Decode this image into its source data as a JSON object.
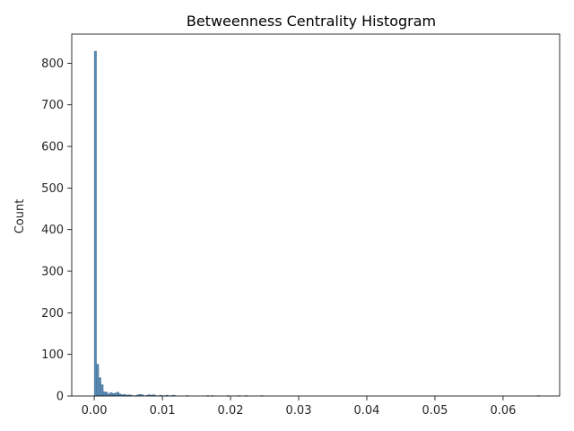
{
  "chart_data": {
    "type": "bar",
    "title": "Betweenness Centrality Histogram",
    "xlabel": "",
    "ylabel": "Count",
    "xlim": [
      -0.0033,
      0.0683
    ],
    "ylim": [
      0,
      870
    ],
    "x_ticks": [
      0.0,
      0.01,
      0.02,
      0.03,
      0.04,
      0.05,
      0.06
    ],
    "x_tick_labels": [
      "0.00",
      "0.01",
      "0.02",
      "0.03",
      "0.04",
      "0.05",
      "0.06"
    ],
    "y_ticks": [
      0,
      100,
      200,
      300,
      400,
      500,
      600,
      700,
      800
    ],
    "y_tick_labels": [
      "0",
      "100",
      "200",
      "300",
      "400",
      "500",
      "600",
      "700",
      "800"
    ],
    "grid": false,
    "bin_width": 0.00033,
    "bins": [
      {
        "x": 0.0,
        "count": 829
      },
      {
        "x": 0.00033,
        "count": 76
      },
      {
        "x": 0.00066,
        "count": 44
      },
      {
        "x": 0.00099,
        "count": 27
      },
      {
        "x": 0.00132,
        "count": 10
      },
      {
        "x": 0.00165,
        "count": 9
      },
      {
        "x": 0.00198,
        "count": 5
      },
      {
        "x": 0.00231,
        "count": 8
      },
      {
        "x": 0.00264,
        "count": 6
      },
      {
        "x": 0.00297,
        "count": 7
      },
      {
        "x": 0.0033,
        "count": 9
      },
      {
        "x": 0.00363,
        "count": 5
      },
      {
        "x": 0.00396,
        "count": 3
      },
      {
        "x": 0.00429,
        "count": 4
      },
      {
        "x": 0.00462,
        "count": 2
      },
      {
        "x": 0.00495,
        "count": 3
      },
      {
        "x": 0.00528,
        "count": 2
      },
      {
        "x": 0.00594,
        "count": 1
      },
      {
        "x": 0.00627,
        "count": 3
      },
      {
        "x": 0.0066,
        "count": 4
      },
      {
        "x": 0.00693,
        "count": 3
      },
      {
        "x": 0.00759,
        "count": 2
      },
      {
        "x": 0.00792,
        "count": 3
      },
      {
        "x": 0.00825,
        "count": 2
      },
      {
        "x": 0.00858,
        "count": 3
      },
      {
        "x": 0.00891,
        "count": 1
      },
      {
        "x": 0.00957,
        "count": 2
      },
      {
        "x": 0.01023,
        "count": 1
      },
      {
        "x": 0.01056,
        "count": 2
      },
      {
        "x": 0.01122,
        "count": 1
      },
      {
        "x": 0.01155,
        "count": 2
      },
      {
        "x": 0.01353,
        "count": 1
      },
      {
        "x": 0.0165,
        "count": 1
      },
      {
        "x": 0.01716,
        "count": 1
      },
      {
        "x": 0.01947,
        "count": 1
      },
      {
        "x": 0.02112,
        "count": 1
      },
      {
        "x": 0.02211,
        "count": 1
      },
      {
        "x": 0.02442,
        "count": 1
      },
      {
        "x": 0.06501,
        "count": 1
      }
    ],
    "colors": {
      "bar_fill": "#5a8ab2",
      "bar_edge": "#3b6a93",
      "axis": "#000000",
      "text": "#262626"
    }
  }
}
